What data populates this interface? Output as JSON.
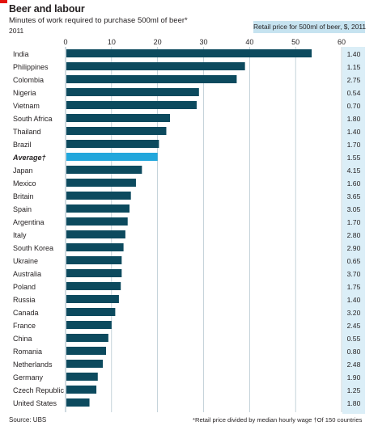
{
  "header": {
    "title": "Beer and labour",
    "subtitle": "Minutes of work required to purchase 500ml of beer*",
    "year": "2011"
  },
  "price_column": {
    "header": "Retail price for 500ml of beer, $, 2011"
  },
  "footer": {
    "source": "Source: UBS",
    "footnote": "*Retail price divided by median hourly wage    †Of 150 countries"
  },
  "colors": {
    "bar": "#0c4a5e",
    "average_bar": "#22a7dc",
    "gridline": "#9fb6c2",
    "price_header_bg": "#c6e3f0",
    "price_col_bg": "#dbeef7"
  },
  "chart_data": {
    "type": "bar",
    "orientation": "horizontal",
    "xlim": [
      0,
      60
    ],
    "xticks": [
      0,
      10,
      20,
      30,
      40,
      50,
      60
    ],
    "grid": true,
    "categories": [
      "India",
      "Philippines",
      "Colombia",
      "Nigeria",
      "Vietnam",
      "South Africa",
      "Thailand",
      "Brazil",
      "Average†",
      "Japan",
      "Mexico",
      "Britain",
      "Spain",
      "Argentina",
      "Italy",
      "South Korea",
      "Ukraine",
      "Australia",
      "Poland",
      "Russia",
      "Canada",
      "France",
      "China",
      "Romania",
      "Netherlands",
      "Germany",
      "Czech Republic",
      "United States"
    ],
    "values": [
      53.5,
      39.0,
      37.2,
      29.0,
      28.5,
      22.7,
      21.9,
      20.3,
      20.0,
      16.6,
      15.3,
      14.2,
      13.9,
      13.5,
      13.0,
      12.6,
      12.2,
      12.2,
      12.0,
      11.6,
      10.8,
      10.0,
      9.3,
      8.8,
      8.1,
      7.0,
      6.7,
      5.2
    ],
    "retail_price": [
      "1.40",
      "1.15",
      "2.75",
      "0.54",
      "0.70",
      "1.80",
      "1.40",
      "1.70",
      "1.55",
      "4.15",
      "1.60",
      "3.65",
      "3.05",
      "1.70",
      "2.80",
      "2.90",
      "0.65",
      "3.70",
      "1.75",
      "1.40",
      "3.20",
      "2.45",
      "0.55",
      "0.80",
      "2.48",
      "1.90",
      "1.25",
      "1.80"
    ],
    "highlight_index": 8
  }
}
